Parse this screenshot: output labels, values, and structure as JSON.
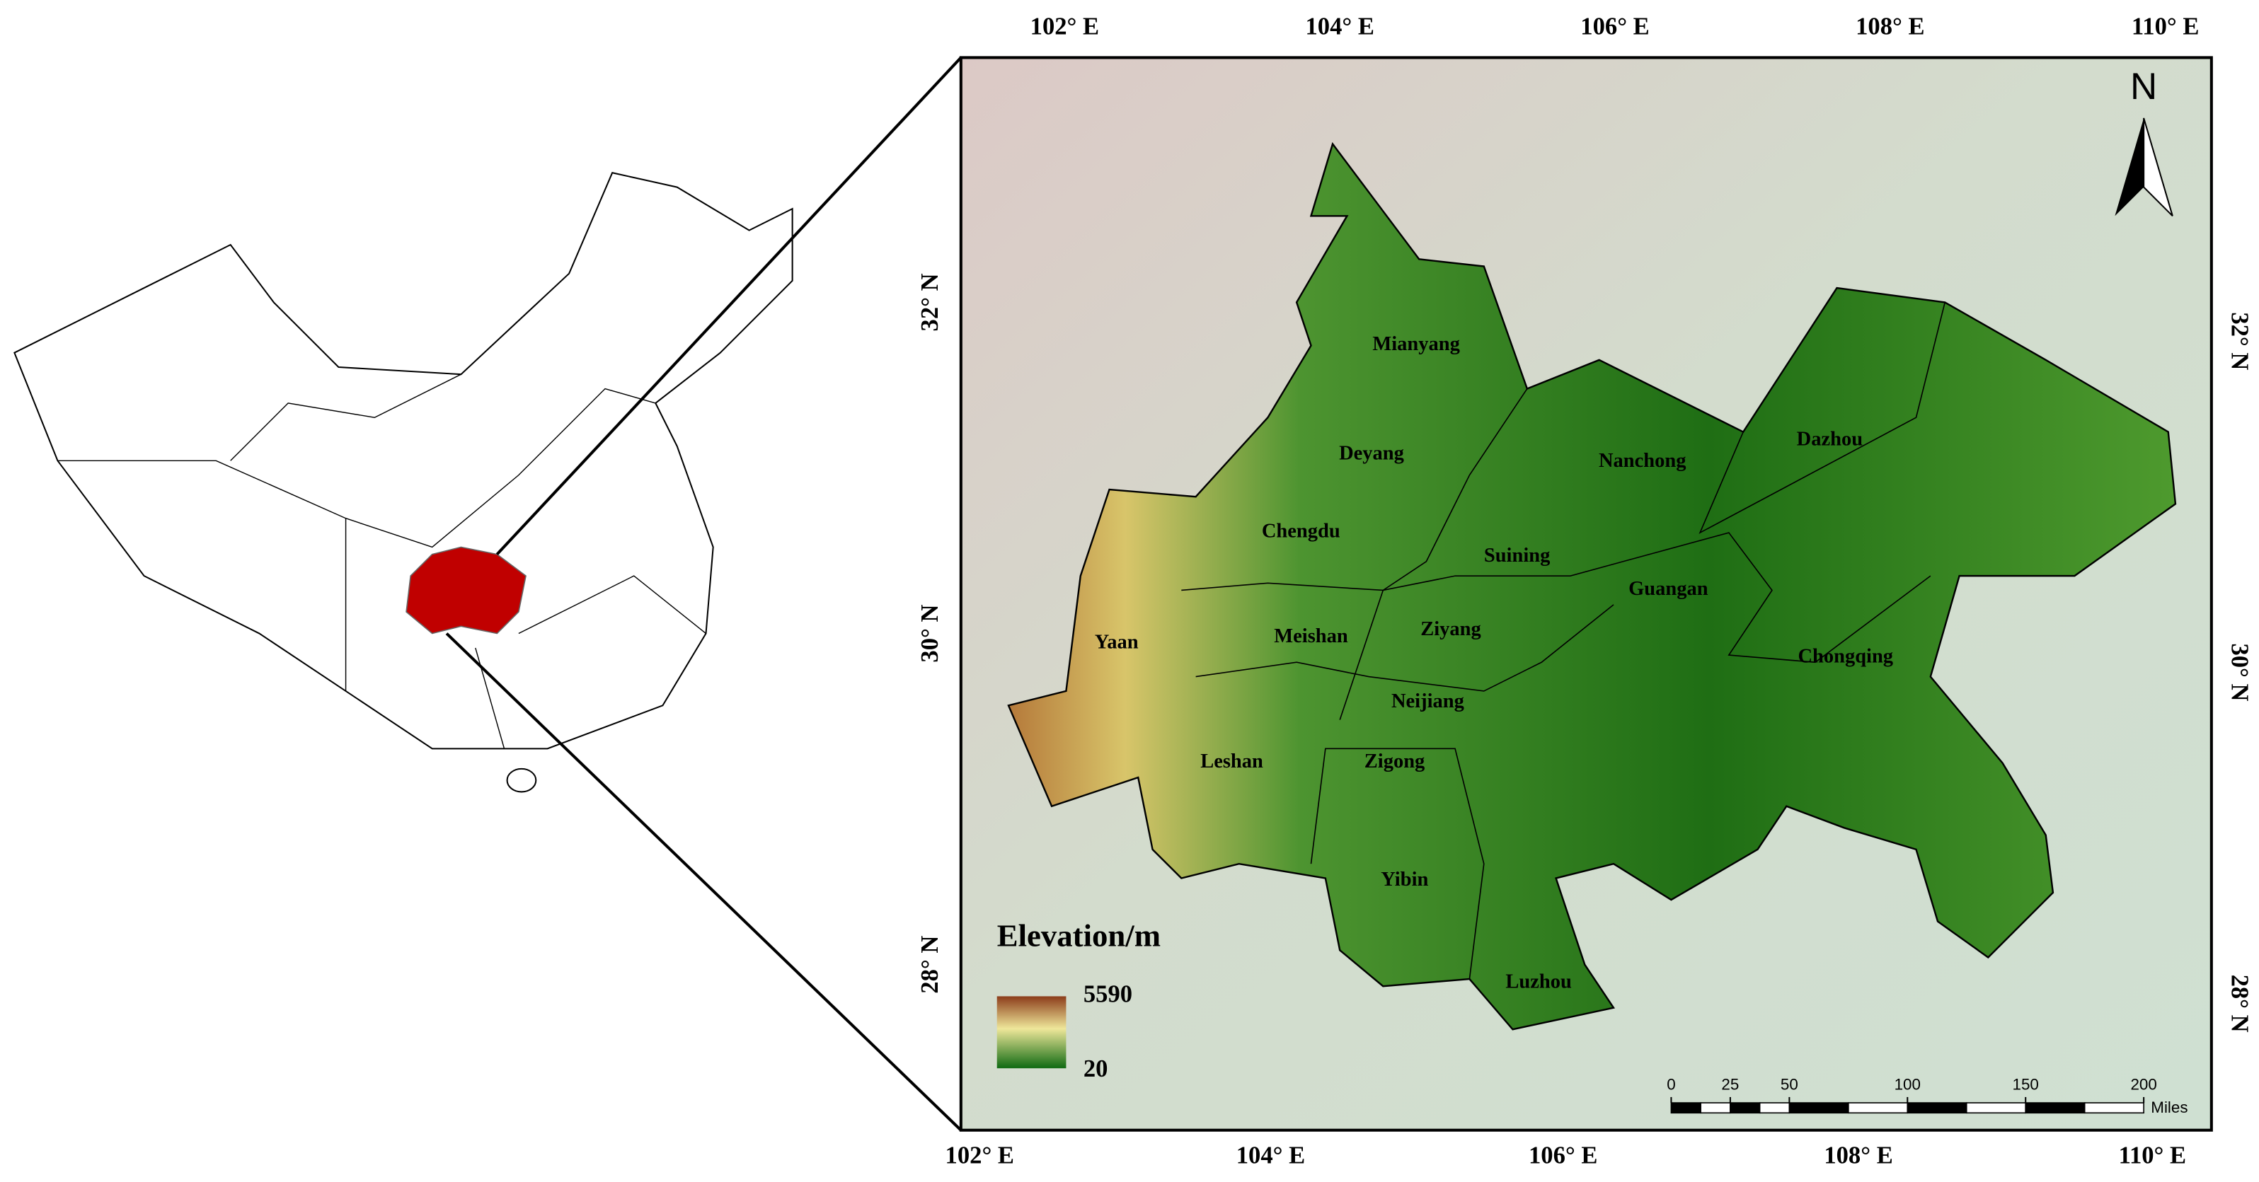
{
  "map": {
    "top_labels": [
      "102° E",
      "104° E",
      "106° E",
      "108° E",
      "110° E"
    ],
    "bottom_labels": [
      "102° E",
      "104° E",
      "106° E",
      "108° E",
      "110° E"
    ],
    "left_labels": [
      "32° N",
      "30° N",
      "28° N"
    ],
    "right_labels": [
      "32° N",
      "30° N",
      "28° N"
    ],
    "north": "N",
    "legend": {
      "title": "Elevation/m",
      "max": 5590,
      "min": 20
    },
    "scale_bar": {
      "ticks": [
        0,
        25,
        50,
        100,
        150,
        200
      ],
      "unit": "Miles"
    },
    "cities": [
      "Mianyang",
      "Deyang",
      "Nanchong",
      "Dazhou",
      "Chengdu",
      "Suining",
      "Guangan",
      "Yaan",
      "Meishan",
      "Ziyang",
      "Chongqing",
      "Neijiang",
      "Leshan",
      "Zigong",
      "Yibin",
      "Luzhou"
    ]
  }
}
